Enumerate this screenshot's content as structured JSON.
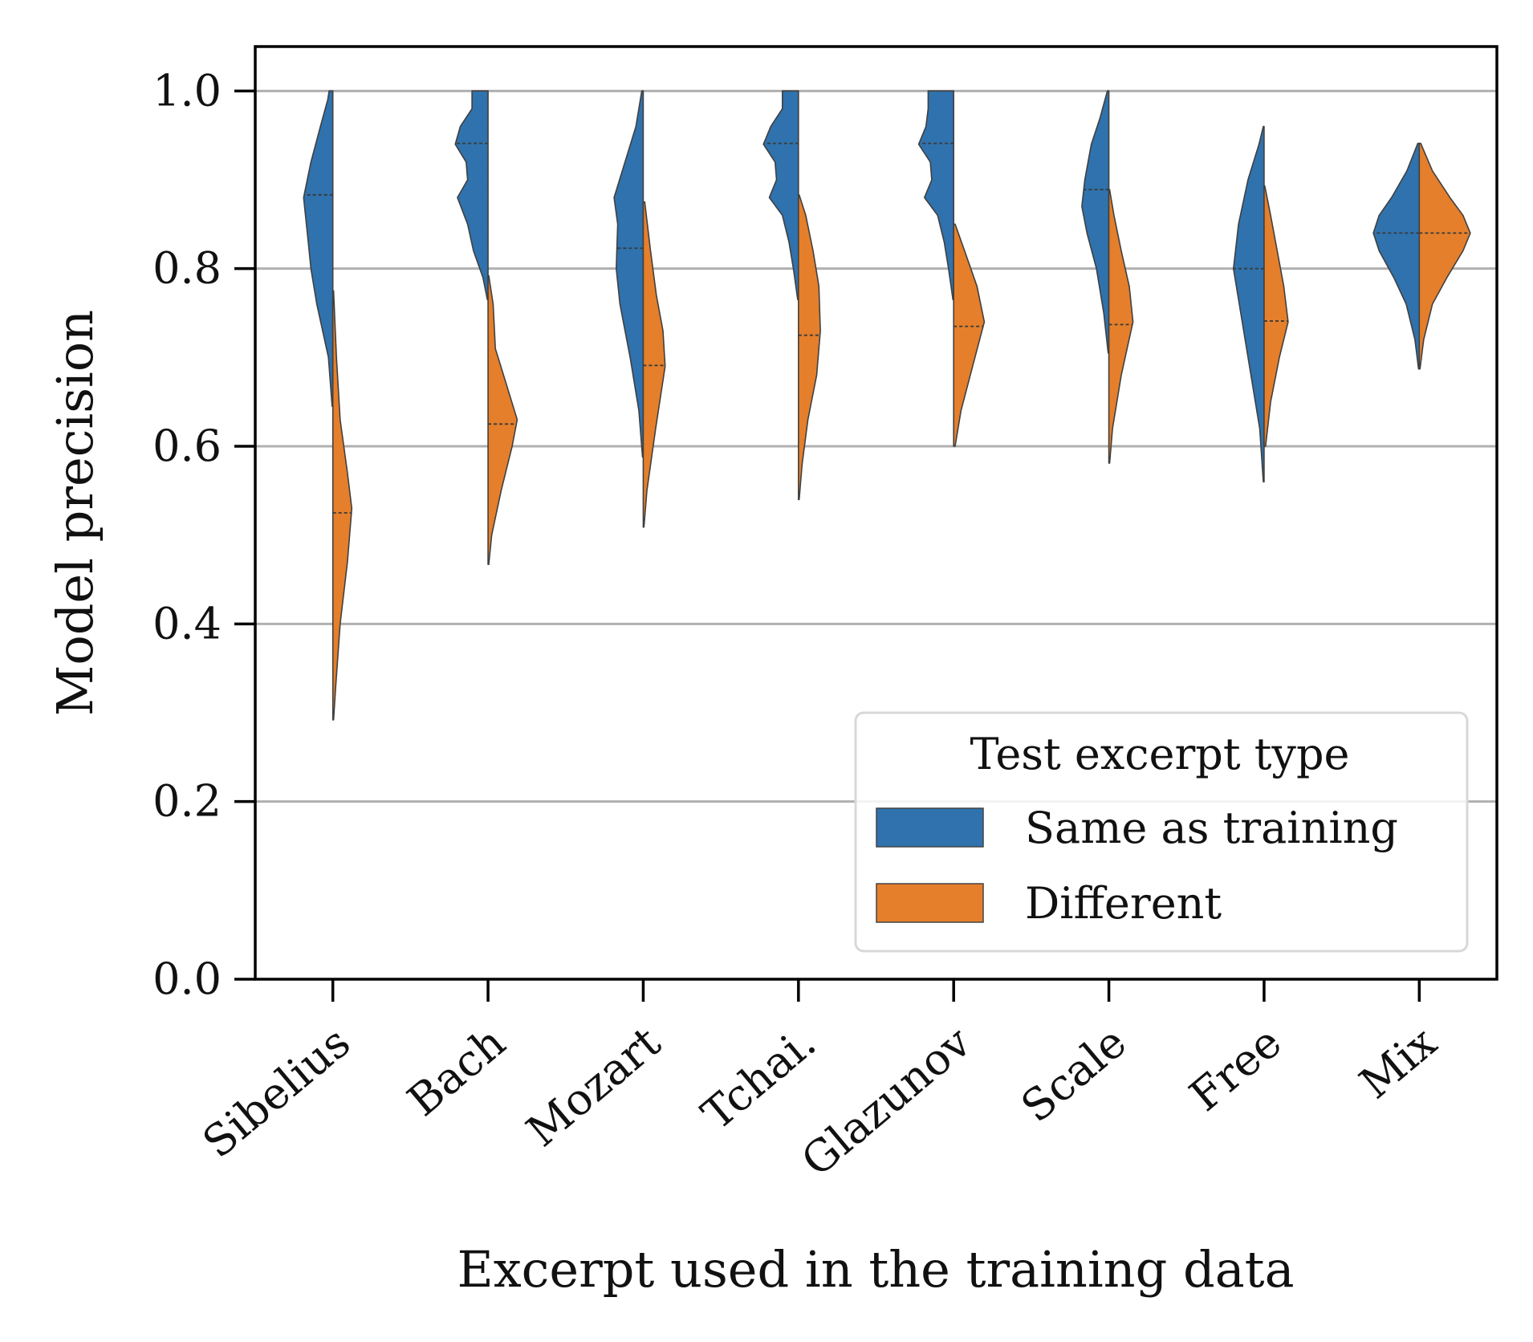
{
  "chart_data": {
    "type": "violin",
    "split": true,
    "title": "",
    "xlabel": "Excerpt used in the training data",
    "ylabel": "Model precision",
    "ylim": [
      0.0,
      1.05
    ],
    "yticks": [
      "0.0",
      "0.2",
      "0.4",
      "0.6",
      "0.8",
      "1.0"
    ],
    "grid": "horizontal",
    "categories": [
      "Sibelius",
      "Bach",
      "Mozart",
      "Tchai.",
      "Glazunov",
      "Scale",
      "Free",
      "Mix"
    ],
    "legend": {
      "title": "Test excerpt type",
      "placement": "lower-right"
    },
    "series": [
      {
        "name": "Same as training",
        "color": "#2f72ad",
        "violins": [
          {
            "min": 0.645,
            "max": 1.0,
            "median": 0.883,
            "profile": [
              [
                0.645,
                0.01
              ],
              [
                0.7,
                0.06
              ],
              [
                0.76,
                0.22
              ],
              [
                0.8,
                0.3
              ],
              [
                0.84,
                0.35
              ],
              [
                0.88,
                0.4
              ],
              [
                0.92,
                0.3
              ],
              [
                0.96,
                0.17
              ],
              [
                0.99,
                0.07
              ],
              [
                1.0,
                0.05
              ]
            ]
          },
          {
            "min": 0.765,
            "max": 1.0,
            "median": 0.941,
            "profile": [
              [
                0.765,
                0.01
              ],
              [
                0.79,
                0.07
              ],
              [
                0.82,
                0.2
              ],
              [
                0.85,
                0.28
              ],
              [
                0.88,
                0.42
              ],
              [
                0.9,
                0.28
              ],
              [
                0.92,
                0.3
              ],
              [
                0.94,
                0.45
              ],
              [
                0.96,
                0.38
              ],
              [
                0.98,
                0.22
              ],
              [
                1.0,
                0.22
              ]
            ]
          },
          {
            "min": 0.588,
            "max": 1.0,
            "median": 0.823,
            "profile": [
              [
                0.588,
                0.01
              ],
              [
                0.64,
                0.06
              ],
              [
                0.7,
                0.18
              ],
              [
                0.76,
                0.32
              ],
              [
                0.8,
                0.37
              ],
              [
                0.85,
                0.35
              ],
              [
                0.88,
                0.4
              ],
              [
                0.92,
                0.25
              ],
              [
                0.96,
                0.1
              ],
              [
                1.0,
                0.02
              ]
            ]
          },
          {
            "min": 0.765,
            "max": 1.0,
            "median": 0.941,
            "profile": [
              [
                0.765,
                0.01
              ],
              [
                0.8,
                0.07
              ],
              [
                0.83,
                0.13
              ],
              [
                0.86,
                0.22
              ],
              [
                0.88,
                0.4
              ],
              [
                0.9,
                0.3
              ],
              [
                0.92,
                0.32
              ],
              [
                0.94,
                0.48
              ],
              [
                0.96,
                0.38
              ],
              [
                0.98,
                0.22
              ],
              [
                1.0,
                0.22
              ]
            ]
          },
          {
            "min": 0.765,
            "max": 1.0,
            "median": 0.941,
            "profile": [
              [
                0.765,
                0.01
              ],
              [
                0.8,
                0.07
              ],
              [
                0.83,
                0.13
              ],
              [
                0.86,
                0.22
              ],
              [
                0.88,
                0.4
              ],
              [
                0.9,
                0.3
              ],
              [
                0.92,
                0.32
              ],
              [
                0.94,
                0.48
              ],
              [
                0.96,
                0.38
              ],
              [
                0.98,
                0.35
              ],
              [
                1.0,
                0.35
              ]
            ]
          },
          {
            "min": 0.705,
            "max": 1.0,
            "median": 0.889,
            "profile": [
              [
                0.705,
                0.01
              ],
              [
                0.75,
                0.07
              ],
              [
                0.8,
                0.17
              ],
              [
                0.84,
                0.3
              ],
              [
                0.87,
                0.37
              ],
              [
                0.9,
                0.33
              ],
              [
                0.94,
                0.24
              ],
              [
                0.97,
                0.12
              ],
              [
                1.0,
                0.02
              ]
            ]
          },
          {
            "min": 0.56,
            "max": 0.96,
            "median": 0.8,
            "profile": [
              [
                0.56,
                0.01
              ],
              [
                0.62,
                0.06
              ],
              [
                0.68,
                0.18
              ],
              [
                0.74,
                0.3
              ],
              [
                0.8,
                0.42
              ],
              [
                0.85,
                0.35
              ],
              [
                0.9,
                0.22
              ],
              [
                0.94,
                0.07
              ],
              [
                0.96,
                0.01
              ]
            ]
          },
          {
            "min": 0.687,
            "max": 0.941,
            "median": 0.84,
            "profile": [
              [
                0.687,
                0.01
              ],
              [
                0.72,
                0.06
              ],
              [
                0.76,
                0.18
              ],
              [
                0.79,
                0.35
              ],
              [
                0.82,
                0.55
              ],
              [
                0.84,
                0.63
              ],
              [
                0.86,
                0.55
              ],
              [
                0.88,
                0.38
              ],
              [
                0.91,
                0.17
              ],
              [
                0.941,
                0.02
              ]
            ]
          }
        ]
      },
      {
        "name": "Different",
        "color": "#e57f2b",
        "violins": [
          {
            "min": 0.292,
            "max": 0.775,
            "median": 0.525,
            "profile": [
              [
                0.292,
                0.01
              ],
              [
                0.33,
                0.04
              ],
              [
                0.4,
                0.1
              ],
              [
                0.47,
                0.2
              ],
              [
                0.53,
                0.26
              ],
              [
                0.57,
                0.2
              ],
              [
                0.63,
                0.1
              ],
              [
                0.7,
                0.05
              ],
              [
                0.775,
                0.01
              ]
            ]
          },
          {
            "min": 0.467,
            "max": 0.792,
            "median": 0.625,
            "profile": [
              [
                0.467,
                0.01
              ],
              [
                0.5,
                0.05
              ],
              [
                0.55,
                0.18
              ],
              [
                0.6,
                0.33
              ],
              [
                0.63,
                0.4
              ],
              [
                0.67,
                0.25
              ],
              [
                0.71,
                0.1
              ],
              [
                0.76,
                0.07
              ],
              [
                0.792,
                0.01
              ]
            ]
          },
          {
            "min": 0.509,
            "max": 0.875,
            "median": 0.691,
            "profile": [
              [
                0.509,
                0.01
              ],
              [
                0.55,
                0.05
              ],
              [
                0.62,
                0.17
              ],
              [
                0.69,
                0.3
              ],
              [
                0.73,
                0.27
              ],
              [
                0.77,
                0.18
              ],
              [
                0.82,
                0.1
              ],
              [
                0.875,
                0.02
              ]
            ]
          },
          {
            "min": 0.54,
            "max": 0.883,
            "median": 0.725,
            "profile": [
              [
                0.54,
                0.01
              ],
              [
                0.58,
                0.05
              ],
              [
                0.63,
                0.13
              ],
              [
                0.68,
                0.25
              ],
              [
                0.73,
                0.3
              ],
              [
                0.78,
                0.28
              ],
              [
                0.82,
                0.2
              ],
              [
                0.86,
                0.1
              ],
              [
                0.883,
                0.01
              ]
            ]
          },
          {
            "min": 0.6,
            "max": 0.85,
            "median": 0.735,
            "profile": [
              [
                0.6,
                0.02
              ],
              [
                0.64,
                0.1
              ],
              [
                0.69,
                0.26
              ],
              [
                0.74,
                0.42
              ],
              [
                0.78,
                0.32
              ],
              [
                0.82,
                0.15
              ],
              [
                0.85,
                0.02
              ]
            ]
          },
          {
            "min": 0.581,
            "max": 0.889,
            "median": 0.737,
            "profile": [
              [
                0.581,
                0.01
              ],
              [
                0.62,
                0.05
              ],
              [
                0.68,
                0.17
              ],
              [
                0.74,
                0.33
              ],
              [
                0.78,
                0.28
              ],
              [
                0.82,
                0.17
              ],
              [
                0.86,
                0.07
              ],
              [
                0.889,
                0.01
              ]
            ]
          },
          {
            "min": 0.6,
            "max": 0.893,
            "median": 0.741,
            "profile": [
              [
                0.6,
                0.02
              ],
              [
                0.65,
                0.09
              ],
              [
                0.7,
                0.21
              ],
              [
                0.74,
                0.33
              ],
              [
                0.78,
                0.27
              ],
              [
                0.82,
                0.18
              ],
              [
                0.86,
                0.09
              ],
              [
                0.893,
                0.01
              ]
            ]
          },
          {
            "min": 0.687,
            "max": 0.941,
            "median": 0.84,
            "profile": [
              [
                0.687,
                0.01
              ],
              [
                0.72,
                0.06
              ],
              [
                0.76,
                0.18
              ],
              [
                0.79,
                0.38
              ],
              [
                0.82,
                0.6
              ],
              [
                0.84,
                0.7
              ],
              [
                0.86,
                0.6
              ],
              [
                0.88,
                0.42
              ],
              [
                0.91,
                0.18
              ],
              [
                0.941,
                0.02
              ]
            ]
          }
        ]
      }
    ]
  }
}
